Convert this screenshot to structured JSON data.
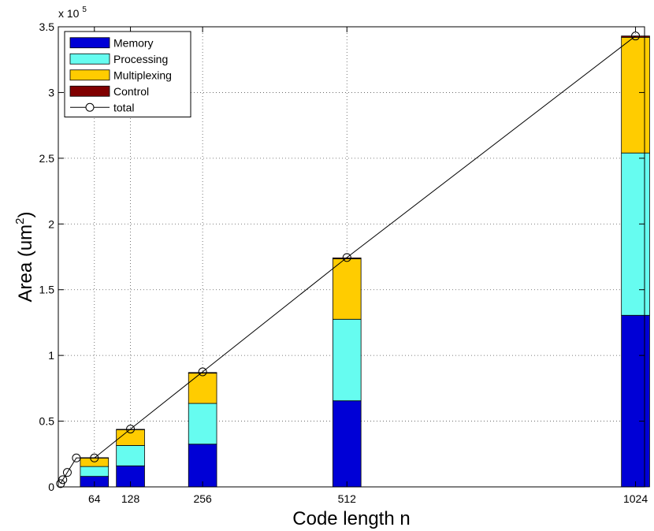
{
  "chart_data": {
    "type": "bar",
    "subtype": "stacked-bar-with-line",
    "xlabel": "Code length n",
    "ylabel_main": "Area (um",
    "ylabel_sup": "2",
    "ylabel_close": ")",
    "multiplier_base": "x 10",
    "multiplier_exp": "5",
    "xlim": [
      0,
      1040
    ],
    "ylim": [
      0,
      3.5
    ],
    "yticks": [
      0,
      0.5,
      1,
      1.5,
      2,
      2.5,
      3,
      3.5
    ],
    "ytick_labels": [
      "0",
      "0.5",
      "1",
      "1.5",
      "2",
      "2.5",
      "3",
      "3.5"
    ],
    "xticks": [
      64,
      128,
      256,
      512,
      1024
    ],
    "xtick_labels": [
      "64",
      "128",
      "256",
      "512",
      "1024"
    ],
    "grid": true,
    "legend_position": "top-left",
    "bar_width": 50,
    "series": [
      {
        "name": "Memory",
        "color": "#0000d6",
        "values": [
          0.08,
          0.16,
          0.325,
          0.655,
          1.305
        ]
      },
      {
        "name": "Processing",
        "color": "#66fcf0",
        "values": [
          0.075,
          0.155,
          0.31,
          0.62,
          1.235
        ]
      },
      {
        "name": "Multiplexing",
        "color": "#ffcc00",
        "values": [
          0.065,
          0.12,
          0.23,
          0.46,
          0.88
        ]
      },
      {
        "name": "Control",
        "color": "#800000",
        "values": [
          0.002,
          0.003,
          0.005,
          0.007,
          0.01
        ]
      }
    ],
    "total": {
      "name": "total",
      "color": "#000000",
      "x": [
        4,
        8,
        16,
        32,
        64,
        128,
        256,
        512,
        1024
      ],
      "y": [
        0.025,
        0.055,
        0.11,
        0.22,
        0.22,
        0.44,
        0.875,
        1.745,
        3.43
      ]
    }
  }
}
